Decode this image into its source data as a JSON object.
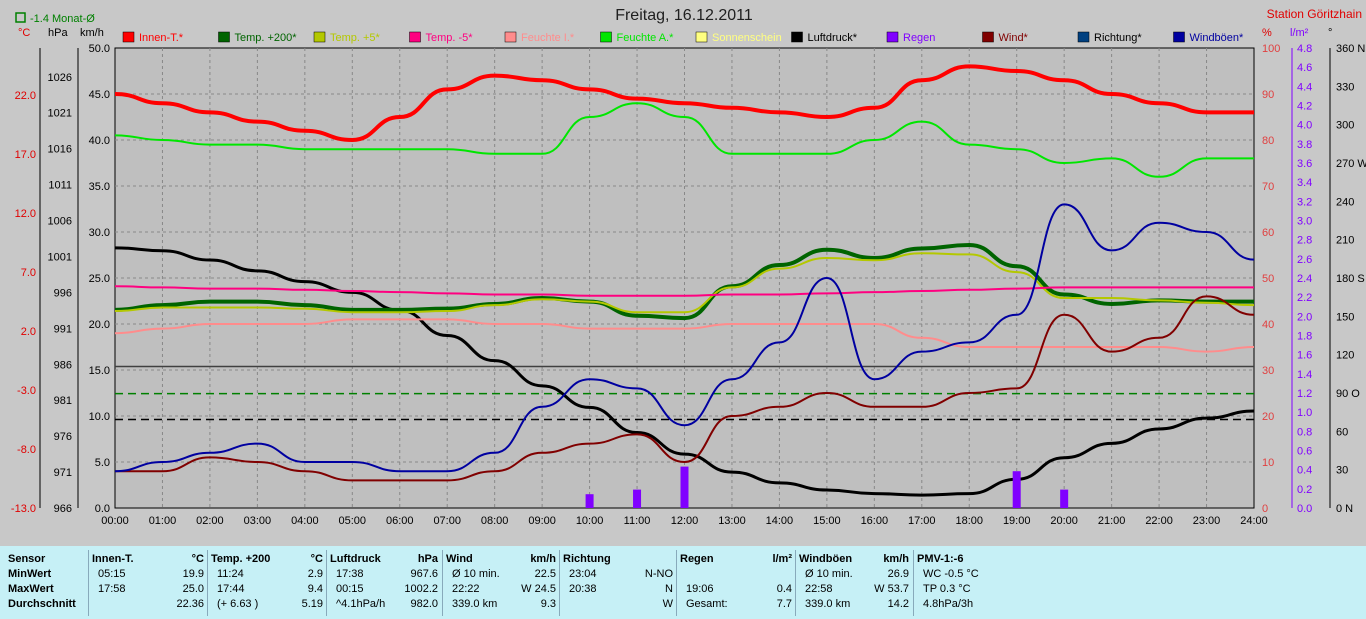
{
  "header": {
    "title": "Freitag, 16.12.2011",
    "station": "Station Göritzhain",
    "month_indicator": "-1.4 Monat-Ø",
    "unit_celsius": "°C",
    "unit_hpa": "hPa",
    "unit_kmh": "km/h",
    "unit_percent": "%",
    "unit_rain": "l/m²",
    "unit_degree": "°"
  },
  "colors": {
    "innen": "#ff0000",
    "temp200": "#006400",
    "temp5": "#b4c800",
    "temp_minus5": "#ff0080",
    "feuchte_i": "#ff8c8c",
    "feuchte_a": "#00e600",
    "sonne": "#ffff80",
    "luftdruck": "#000000",
    "regen": "#8000ff",
    "wind": "#800000",
    "richtung": "#004080",
    "windboeen": "#0000a0"
  },
  "chart_data": {
    "type": "line",
    "title": "Freitag, 16.12.2011",
    "x": [
      "00:00",
      "01:00",
      "02:00",
      "03:00",
      "04:00",
      "05:00",
      "06:00",
      "07:00",
      "08:00",
      "09:00",
      "10:00",
      "11:00",
      "12:00",
      "13:00",
      "14:00",
      "15:00",
      "16:00",
      "17:00",
      "18:00",
      "19:00",
      "20:00",
      "21:00",
      "22:00",
      "23:00",
      "24:00"
    ],
    "axes": {
      "celsius": {
        "ticks": [
          "22.0",
          "17.0",
          "12.0",
          "7.0",
          "2.0",
          "-3.0",
          "-8.0",
          "-13.0"
        ],
        "range": [
          -13,
          26
        ]
      },
      "hpa": {
        "ticks": [
          "1026",
          "1021",
          "1016",
          "1011",
          "1006",
          "1001",
          "996",
          "991",
          "986",
          "981",
          "976",
          "971",
          "966"
        ],
        "range": [
          966,
          1030
        ]
      },
      "kmh": {
        "ticks": [
          "50.0",
          "45.0",
          "40.0",
          "35.0",
          "30.0",
          "25.0",
          "20.0",
          "15.0",
          "10.0",
          "5.0",
          "0.0"
        ],
        "range": [
          0,
          50
        ]
      },
      "percent": {
        "ticks": [
          "100",
          "90",
          "80",
          "70",
          "60",
          "50",
          "40",
          "30",
          "20",
          "10",
          "0"
        ],
        "range": [
          0,
          100
        ]
      },
      "rain": {
        "ticks": [
          "4.8",
          "4.6",
          "4.4",
          "4.2",
          "4.0",
          "3.8",
          "3.6",
          "3.4",
          "3.2",
          "3.0",
          "2.8",
          "2.6",
          "2.4",
          "2.2",
          "2.0",
          "1.8",
          "1.6",
          "1.4",
          "1.2",
          "1.0",
          "0.8",
          "0.6",
          "0.4",
          "0.2",
          "0.0"
        ],
        "range": [
          0,
          5
        ]
      },
      "direction": {
        "ticks": [
          "360 N",
          "330",
          "300",
          "270 W",
          "240",
          "210",
          "180 S",
          "150",
          "120",
          "90 O",
          "60",
          "30",
          "0 N"
        ],
        "range": [
          0,
          360
        ]
      }
    },
    "legend": [
      "Innen-T.*",
      "Temp. +200*",
      "Temp. +5*",
      "Temp. -5*",
      "Feuchte I.*",
      "Feuchte A.*",
      "Sonnenschein",
      "Luftdruck*",
      "Regen",
      "Wind*",
      "Richtung*",
      "Windböen*"
    ],
    "series": [
      {
        "name": "Innen-T.*",
        "axis": "percent",
        "values": [
          90,
          88,
          86,
          84,
          82,
          80,
          85,
          91,
          94,
          93,
          91,
          89,
          88,
          87,
          86,
          85,
          87,
          93,
          96,
          95,
          93,
          90,
          88,
          86,
          86
        ]
      },
      {
        "name": "Feuchte A.*",
        "axis": "percent",
        "values": [
          81,
          80,
          79,
          79,
          78,
          78,
          78,
          78,
          77,
          77,
          85,
          88,
          85,
          77,
          77,
          77,
          80,
          84,
          79,
          78,
          75,
          76,
          72,
          76,
          76
        ]
      },
      {
        "name": "Luftdruck*",
        "axis": "hpa",
        "values": [
          1002.2,
          1001.8,
          1000.5,
          999.0,
          997.5,
          996.0,
          993.5,
          990.0,
          986.5,
          983.0,
          980.0,
          976.5,
          973.5,
          971.0,
          969.5,
          968.5,
          968.0,
          967.8,
          968.0,
          970.0,
          973.0,
          975.0,
          977.0,
          978.5,
          979.5
        ]
      },
      {
        "name": "Temp. +200*",
        "axis": "celsius",
        "values": [
          3.8,
          4.2,
          4.5,
          4.5,
          4.2,
          3.8,
          3.8,
          3.9,
          4.3,
          4.8,
          4.5,
          3.3,
          3.1,
          5.8,
          7.6,
          8.9,
          8.2,
          9.0,
          9.3,
          7.5,
          5.1,
          4.3,
          4.6,
          4.5,
          4.5
        ]
      },
      {
        "name": "Temp. +5*",
        "axis": "celsius",
        "values": [
          3.7,
          4.0,
          4.0,
          4.0,
          3.9,
          3.6,
          3.6,
          3.7,
          4.2,
          4.7,
          4.5,
          3.6,
          3.6,
          5.7,
          7.3,
          8.2,
          8.0,
          8.6,
          8.5,
          7.0,
          4.8,
          4.8,
          4.6,
          4.4,
          4.2
        ]
      },
      {
        "name": "Temp. -5*",
        "axis": "celsius",
        "values": [
          5.8,
          5.7,
          5.6,
          5.6,
          5.5,
          5.4,
          5.3,
          5.2,
          5.1,
          5.1,
          5.0,
          5.0,
          5.0,
          5.1,
          5.1,
          5.2,
          5.3,
          5.4,
          5.5,
          5.6,
          5.7,
          5.7,
          5.7,
          5.7,
          5.7
        ]
      },
      {
        "name": "Feuchte I.*",
        "axis": "percent",
        "values": [
          38,
          39,
          40,
          40,
          40,
          41,
          41,
          41,
          40,
          40,
          39,
          39,
          39,
          40,
          40,
          40,
          40,
          37,
          35,
          35,
          35,
          35,
          35,
          34,
          35
        ]
      },
      {
        "name": "Wind*",
        "axis": "kmh",
        "values": [
          4.0,
          4.0,
          5.5,
          5.0,
          4.0,
          3.0,
          3.0,
          3.0,
          4.0,
          6.0,
          7.0,
          8.0,
          5.0,
          10.0,
          11.0,
          12.5,
          11.0,
          11.0,
          12.5,
          13.0,
          21.0,
          17.0,
          18.5,
          23.0,
          21.0
        ]
      },
      {
        "name": "Windböen*",
        "axis": "kmh",
        "values": [
          4.0,
          5.0,
          6.0,
          7.0,
          5.0,
          5.0,
          4.0,
          4.0,
          6.0,
          11.0,
          14.0,
          13.0,
          9.0,
          14.0,
          18.0,
          25.0,
          14.0,
          17.0,
          18.0,
          21.0,
          33.0,
          28.0,
          31.0,
          30.0,
          27.0
        ]
      },
      {
        "name": "Regen",
        "axis": "rain",
        "values": [
          0,
          0,
          0,
          0,
          0,
          0,
          0,
          0,
          0,
          0,
          0.15,
          0.2,
          0.45,
          0,
          0,
          0,
          0,
          0,
          0,
          0.4,
          0.2,
          0,
          0,
          0,
          0
        ]
      }
    ]
  },
  "table": {
    "row_labels": [
      "Sensor",
      "MinWert",
      "MaxWert",
      "Durchschnitt"
    ],
    "columns": [
      {
        "title": "Innen-T.",
        "unit": "°C",
        "rows": [
          [
            "05:15",
            "19.9"
          ],
          [
            "17:58",
            "25.0"
          ],
          [
            "",
            "22.36"
          ]
        ]
      },
      {
        "title": "Temp. +200",
        "unit": "°C",
        "rows": [
          [
            "11:24",
            "2.9"
          ],
          [
            "17:44",
            "9.4"
          ],
          [
            "(+ 6.63 )",
            "5.19"
          ]
        ]
      },
      {
        "title": "Luftdruck",
        "unit": "hPa",
        "rows": [
          [
            "17:38",
            "967.6"
          ],
          [
            "00:15",
            "1002.2"
          ],
          [
            "^4.1hPa/h",
            "982.0"
          ]
        ]
      },
      {
        "title": "Wind",
        "unit": "km/h",
        "rows": [
          [
            "Ø 10 min.",
            "22.5"
          ],
          [
            "22:22",
            "W 24.5"
          ],
          [
            "339.0 km",
            "9.3"
          ]
        ]
      },
      {
        "title": "Richtung",
        "unit": "",
        "rows": [
          [
            "23:04",
            "N-NO"
          ],
          [
            "20:38",
            "N"
          ],
          [
            "",
            "W"
          ]
        ]
      },
      {
        "title": "Regen",
        "unit": "l/m²",
        "rows": [
          [
            "",
            ""
          ],
          [
            "19:06",
            "0.4"
          ],
          [
            "Gesamt:",
            "7.7"
          ]
        ]
      },
      {
        "title": "Windböen",
        "unit": "km/h",
        "rows": [
          [
            "Ø 10 min.",
            "26.9"
          ],
          [
            "22:58",
            "W 53.7"
          ],
          [
            "339.0 km",
            "14.2"
          ]
        ]
      },
      {
        "title": "PMV-1:-6",
        "unit": "",
        "rows": [
          [
            "WC -0.5 °C",
            ""
          ],
          [
            "TP 0.3 °C",
            ""
          ],
          [
            "4.8hPa/3h",
            ""
          ]
        ]
      }
    ]
  }
}
